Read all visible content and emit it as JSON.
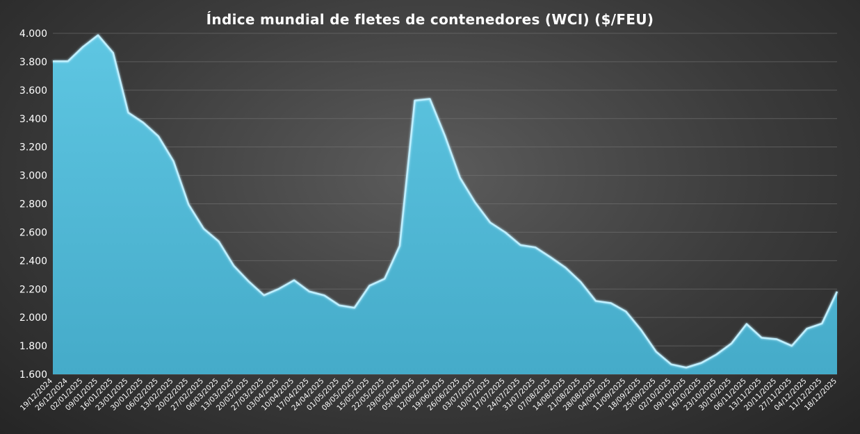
{
  "chart_data": {
    "type": "area",
    "title": "Índice mundial de fletes de contenedores (WCI) ($/FEU)",
    "xlabel": "",
    "ylabel": "",
    "ylim": [
      1600,
      4000
    ],
    "yticks": [
      "1.600",
      "1.800",
      "2.000",
      "2.200",
      "2.400",
      "2.600",
      "2.800",
      "3.000",
      "3.200",
      "3.400",
      "3.600",
      "3.800",
      "4.000"
    ],
    "ytick_values": [
      1600,
      1800,
      2000,
      2200,
      2400,
      2600,
      2800,
      3000,
      3200,
      3400,
      3600,
      3800,
      4000
    ],
    "grid": true,
    "legend": "none",
    "fill_color": "#4fb8d6",
    "line_color": "#bfefff",
    "x": [
      "19/12/2024",
      "26/12/2024",
      "02/01/2025",
      "09/01/2025",
      "16/01/2025",
      "23/01/2025",
      "30/01/2025",
      "06/02/2025",
      "13/02/2025",
      "20/02/2025",
      "27/02/2025",
      "06/03/2025",
      "13/03/2025",
      "20/03/2025",
      "27/03/2025",
      "03/04/2025",
      "10/04/2025",
      "17/04/2025",
      "24/04/2025",
      "01/05/2025",
      "08/05/2025",
      "15/05/2025",
      "22/05/2025",
      "29/05/2025",
      "05/06/2025",
      "12/06/2025",
      "19/06/2025",
      "26/06/2025",
      "03/07/2025",
      "10/07/2025",
      "17/07/2025",
      "24/07/2025",
      "31/07/2025",
      "07/08/2025",
      "14/08/2025",
      "21/08/2025",
      "28/08/2025",
      "04/09/2025",
      "11/09/2025",
      "18/09/2025",
      "25/09/2025",
      "02/10/2025",
      "09/10/2025",
      "16/10/2025",
      "23/10/2025",
      "30/10/2025",
      "06/11/2025",
      "13/11/2025",
      "20/11/2025",
      "27/11/2025",
      "04/12/2025",
      "11/12/2025",
      "18/12/2025"
    ],
    "series": [
      {
        "values": [
          3803,
          3803,
          3905,
          3987,
          3862,
          3442,
          3371,
          3275,
          3100,
          2795,
          2625,
          2535,
          2363,
          2252,
          2156,
          2202,
          2262,
          2183,
          2155,
          2085,
          2068,
          2224,
          2272,
          2504,
          3527,
          3538,
          3278,
          2983,
          2809,
          2668,
          2599,
          2510,
          2493,
          2424,
          2350,
          2250,
          2116,
          2101,
          2042,
          1913,
          1759,
          1670,
          1647,
          1680,
          1739,
          1817,
          1954,
          1857,
          1847,
          1800,
          1921,
          1957,
          2182
        ]
      }
    ]
  }
}
